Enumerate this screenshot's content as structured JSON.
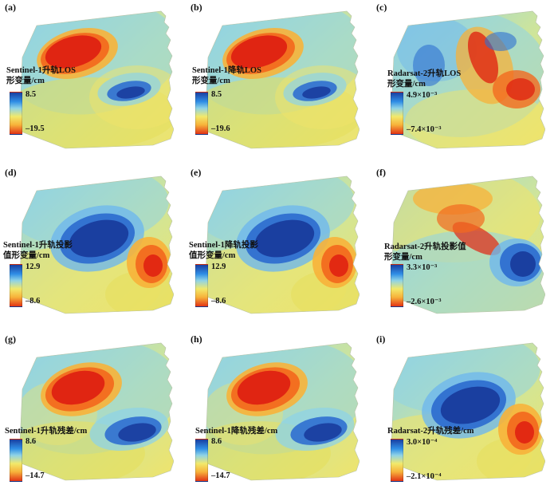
{
  "panels": [
    {
      "label": "(a)",
      "title_line1": "Sentinel-1升轨LOS",
      "title_line2": "形变量/cm",
      "max": "8.5",
      "min": "–19.5"
    },
    {
      "label": "(b)",
      "title_line1": "Sentinel-1降轨LOS",
      "title_line2": "形变量/cm",
      "max": "8.5",
      "min": "–19.6"
    },
    {
      "label": "(c)",
      "title_line1": "Radarsat-2升轨LOS",
      "title_line2": "形变量/cm",
      "max": "4.9×10⁻³",
      "min": "–7.4×10⁻³"
    },
    {
      "label": "(d)",
      "title_line1": "Sentinel-1升轨投影",
      "title_line2": "值形变量/cm",
      "max": "12.9",
      "min": "–8.6"
    },
    {
      "label": "(e)",
      "title_line1": "Sentinel-1降轨投影",
      "title_line2": "值形变量/cm",
      "max": "12.9",
      "min": "–8.6"
    },
    {
      "label": "(f)",
      "title_line1": "Radarsat-2升轨投影值",
      "title_line2": "形变量/cm",
      "max": "3.3×10⁻³",
      "min": "–2.6×10⁻³"
    },
    {
      "label": "(g)",
      "title_line1": "Sentinel-1升轨残差/cm",
      "title_line2": "",
      "max": "8.6",
      "min": "–14.7"
    },
    {
      "label": "(h)",
      "title_line1": "Sentinel-1降轨残差/cm",
      "title_line2": "",
      "max": "8.6",
      "min": "–14.7"
    },
    {
      "label": "(i)",
      "title_line1": "Radarsat-2升轨残差/cm",
      "title_line2": "",
      "max": "3.0×10⁻⁴",
      "min": "–2.1×10⁻⁴"
    }
  ]
}
